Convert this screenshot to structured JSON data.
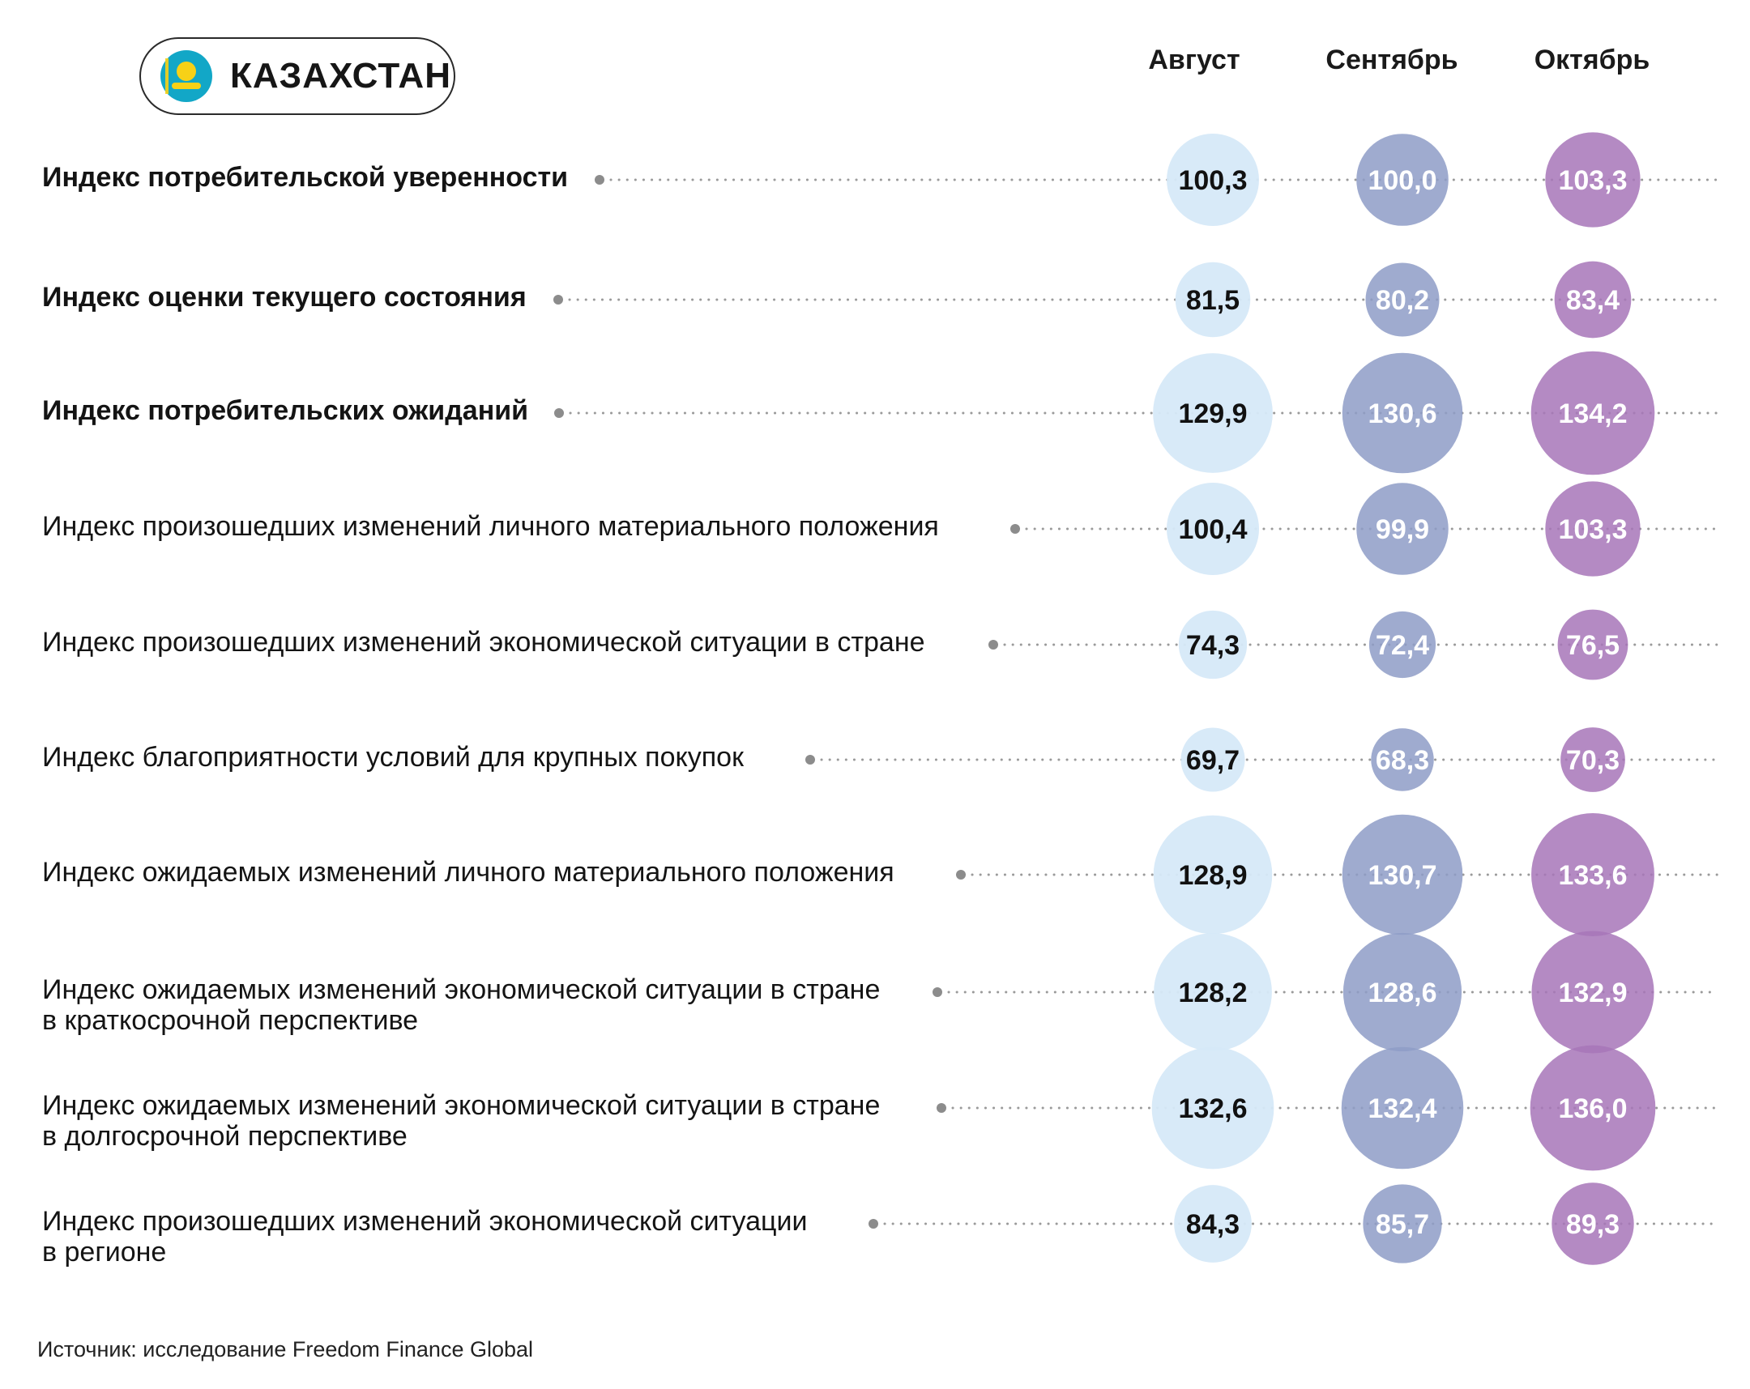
{
  "header": {
    "country": "КАЗАХСТАН"
  },
  "source": "Источник: исследование Freedom Finance Global",
  "colors": {
    "august": "#d6e9f8",
    "september": "#8e9cc7",
    "october": "#a776b8",
    "dots": "#9a9a9a"
  },
  "chart_data": {
    "type": "bubble",
    "categories": [
      "Индекс потребительской уверенности",
      "Индекс оценки текущего состояния",
      "Индекс потребительских ожиданий",
      "Индекс произошедших изменений личного материального положения",
      "Индекс произошедших изменений экономической ситуации в стране",
      "Индекс благоприятности условий для крупных покупок",
      "Индекс ожидаемых изменений личного материального положения",
      "Индекс ожидаемых изменений экономической ситуации в стране в краткосрочной перспективе",
      "Индекс ожидаемых изменений экономической ситуации в стране в долгосрочной перспективе",
      "Индекс произошедших изменений экономической ситуации в регионе"
    ],
    "labels_lines": [
      [
        "Индекс потребительской уверенности"
      ],
      [
        "Индекс оценки текущего состояния"
      ],
      [
        "Индекс потребительских ожиданий"
      ],
      [
        "Индекс произошедших изменений личного материального положения"
      ],
      [
        "Индекс произошедших изменений экономической ситуации в стране"
      ],
      [
        "Индекс благоприятности условий для крупных покупок"
      ],
      [
        "Индекс ожидаемых изменений личного материального положения"
      ],
      [
        "Индекс ожидаемых изменений экономической ситуации в стране",
        "в краткосрочной перспективе"
      ],
      [
        "Индекс ожидаемых изменений экономической ситуации в стране",
        "в долгосрочной перспективе"
      ],
      [
        "Индекс произошедших изменений экономической ситуации",
        "в регионе"
      ]
    ],
    "bold_rows": [
      true,
      true,
      true,
      false,
      false,
      false,
      false,
      false,
      false,
      false
    ],
    "series": [
      {
        "name": "Август",
        "values": [
          100.3,
          81.5,
          129.9,
          100.4,
          74.3,
          69.7,
          128.9,
          128.2,
          132.6,
          84.3
        ],
        "display": [
          "100,3",
          "81,5",
          "129,9",
          "100,4",
          "74,3",
          "69,7",
          "128,9",
          "128,2",
          "132,6",
          "84,3"
        ]
      },
      {
        "name": "Сентябрь",
        "values": [
          100.0,
          80.2,
          130.6,
          99.9,
          72.4,
          68.3,
          130.7,
          128.6,
          132.4,
          85.7
        ],
        "display": [
          "100,0",
          "80,2",
          "130,6",
          "99,9",
          "72,4",
          "68,3",
          "130,7",
          "128,6",
          "132,4",
          "85,7"
        ]
      },
      {
        "name": "Октябрь",
        "values": [
          103.3,
          83.4,
          134.2,
          103.3,
          76.5,
          70.3,
          133.6,
          132.9,
          136.0,
          89.3
        ],
        "display": [
          "103,3",
          "83,4",
          "134,2",
          "103,3",
          "76,5",
          "70,3",
          "133,6",
          "132,9",
          "136,0",
          "89,3"
        ]
      }
    ]
  }
}
